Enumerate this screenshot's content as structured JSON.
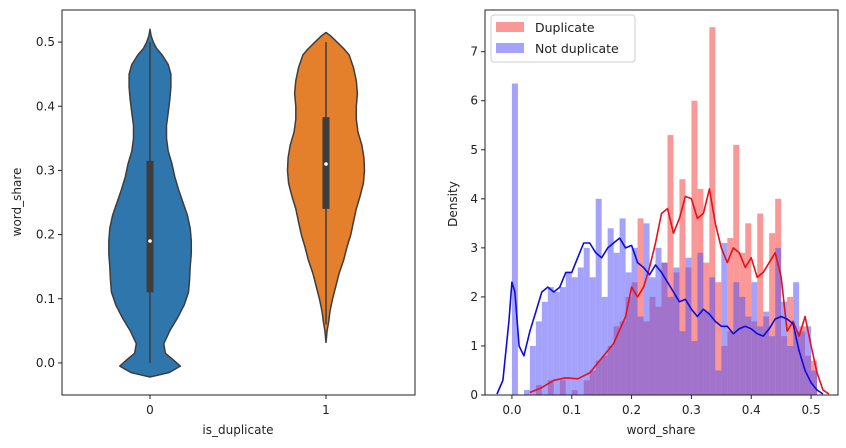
{
  "chart_data": [
    {
      "type": "violin",
      "xlabel": "is_duplicate",
      "ylabel": "word_share",
      "categories": [
        "0",
        "1"
      ],
      "ylim": [
        -0.05,
        0.55
      ],
      "yticks": [
        "0.0",
        "0.1",
        "0.2",
        "0.3",
        "0.4",
        "0.5"
      ],
      "grid": false,
      "colors": [
        "#2f76ad",
        "#e47f2c"
      ],
      "violins": [
        {
          "category": "0",
          "color": "#2f76ad",
          "range": [
            -0.022,
            0.52
          ],
          "median": 0.19,
          "q1": 0.11,
          "q3": 0.315,
          "whisker": [
            0.0,
            0.5
          ],
          "profile": [
            [
              -0.022,
              0.0
            ],
            [
              -0.015,
              0.35
            ],
            [
              -0.005,
              0.55
            ],
            [
              0.005,
              0.42
            ],
            [
              0.015,
              0.28
            ],
            [
              0.03,
              0.25
            ],
            [
              0.05,
              0.36
            ],
            [
              0.07,
              0.5
            ],
            [
              0.09,
              0.62
            ],
            [
              0.11,
              0.7
            ],
            [
              0.13,
              0.72
            ],
            [
              0.15,
              0.73
            ],
            [
              0.17,
              0.75
            ],
            [
              0.19,
              0.75
            ],
            [
              0.21,
              0.73
            ],
            [
              0.23,
              0.68
            ],
            [
              0.25,
              0.6
            ],
            [
              0.27,
              0.52
            ],
            [
              0.29,
              0.45
            ],
            [
              0.31,
              0.4
            ],
            [
              0.33,
              0.33
            ],
            [
              0.35,
              0.3
            ],
            [
              0.37,
              0.3
            ],
            [
              0.39,
              0.33
            ],
            [
              0.41,
              0.36
            ],
            [
              0.43,
              0.38
            ],
            [
              0.45,
              0.38
            ],
            [
              0.465,
              0.33
            ],
            [
              0.48,
              0.22
            ],
            [
              0.49,
              0.12
            ],
            [
              0.5,
              0.06
            ],
            [
              0.51,
              0.02
            ],
            [
              0.52,
              0.0
            ]
          ]
        },
        {
          "category": "1",
          "color": "#e47f2c",
          "range": [
            0.032,
            0.515
          ],
          "median": 0.31,
          "q1": 0.24,
          "q3": 0.383,
          "whisker": [
            0.06,
            0.5
          ],
          "profile": [
            [
              0.032,
              0.0
            ],
            [
              0.05,
              0.02
            ],
            [
              0.065,
              0.05
            ],
            [
              0.08,
              0.07
            ],
            [
              0.1,
              0.12
            ],
            [
              0.12,
              0.18
            ],
            [
              0.14,
              0.24
            ],
            [
              0.16,
              0.32
            ],
            [
              0.18,
              0.38
            ],
            [
              0.2,
              0.45
            ],
            [
              0.22,
              0.5
            ],
            [
              0.24,
              0.55
            ],
            [
              0.26,
              0.62
            ],
            [
              0.28,
              0.68
            ],
            [
              0.3,
              0.7
            ],
            [
              0.32,
              0.69
            ],
            [
              0.34,
              0.65
            ],
            [
              0.36,
              0.58
            ],
            [
              0.38,
              0.55
            ],
            [
              0.4,
              0.55
            ],
            [
              0.42,
              0.57
            ],
            [
              0.44,
              0.55
            ],
            [
              0.46,
              0.5
            ],
            [
              0.48,
              0.42
            ],
            [
              0.49,
              0.32
            ],
            [
              0.5,
              0.2
            ],
            [
              0.51,
              0.08
            ],
            [
              0.515,
              0.0
            ]
          ]
        }
      ]
    },
    {
      "type": "histogram",
      "xlabel": "word_share",
      "ylabel": "Density",
      "xlim": [
        -0.045,
        0.545
      ],
      "ylim": [
        0,
        7.85
      ],
      "xticks": [
        "0.0",
        "0.1",
        "0.2",
        "0.3",
        "0.4",
        "0.5"
      ],
      "yticks": [
        "0",
        "1",
        "2",
        "3",
        "4",
        "5",
        "6",
        "7"
      ],
      "legend": "top-left",
      "grid": false,
      "bin_width": 0.01,
      "series": [
        {
          "name": "Duplicate",
          "color": "#f4433f",
          "bins": [
            [
              0.04,
              0.2
            ],
            [
              0.06,
              0.3
            ],
            [
              0.08,
              0.3
            ],
            [
              0.1,
              0.1
            ],
            [
              0.12,
              0.3
            ],
            [
              0.13,
              0.5
            ],
            [
              0.14,
              0.7
            ],
            [
              0.15,
              0.8
            ],
            [
              0.16,
              1.0
            ],
            [
              0.17,
              1.4
            ],
            [
              0.18,
              1.5
            ],
            [
              0.19,
              2.0
            ],
            [
              0.2,
              2.3
            ],
            [
              0.21,
              3.6
            ],
            [
              0.22,
              1.5
            ],
            [
              0.23,
              2.0
            ],
            [
              0.24,
              1.8
            ],
            [
              0.25,
              2.7
            ],
            [
              0.26,
              5.3
            ],
            [
              0.27,
              2.5
            ],
            [
              0.28,
              4.4
            ],
            [
              0.29,
              2.6
            ],
            [
              0.3,
              6.0
            ],
            [
              0.31,
              4.2
            ],
            [
              0.32,
              2.7
            ],
            [
              0.33,
              7.5
            ],
            [
              0.34,
              2.3
            ],
            [
              0.35,
              1.0
            ],
            [
              0.36,
              3.2
            ],
            [
              0.37,
              5.1
            ],
            [
              0.38,
              2.9
            ],
            [
              0.39,
              3.5
            ],
            [
              0.4,
              1.5
            ],
            [
              0.41,
              3.7
            ],
            [
              0.42,
              1.6
            ],
            [
              0.43,
              3.3
            ],
            [
              0.44,
              4.0
            ],
            [
              0.45,
              1.2
            ],
            [
              0.46,
              2.0
            ],
            [
              0.47,
              1.3
            ],
            [
              0.48,
              1.4
            ],
            [
              0.49,
              0.8
            ],
            [
              0.5,
              0.7
            ]
          ]
        },
        {
          "name": "Not duplicate",
          "color": "#5a55f7",
          "bins": [
            [
              0.0,
              6.35
            ],
            [
              0.02,
              0.1
            ],
            [
              0.03,
              1.0
            ],
            [
              0.04,
              1.5
            ],
            [
              0.05,
              1.9
            ],
            [
              0.06,
              2.2
            ],
            [
              0.07,
              2.1
            ],
            [
              0.08,
              2.2
            ],
            [
              0.09,
              2.5
            ],
            [
              0.1,
              2.4
            ],
            [
              0.11,
              2.6
            ],
            [
              0.12,
              3.0
            ],
            [
              0.13,
              2.4
            ],
            [
              0.14,
              4.0
            ],
            [
              0.15,
              2.0
            ],
            [
              0.16,
              3.4
            ],
            [
              0.17,
              2.9
            ],
            [
              0.18,
              3.6
            ],
            [
              0.19,
              2.5
            ],
            [
              0.2,
              3.0
            ],
            [
              0.21,
              1.6
            ],
            [
              0.22,
              3.5
            ],
            [
              0.23,
              2.4
            ],
            [
              0.24,
              3.0
            ],
            [
              0.25,
              2.7
            ],
            [
              0.26,
              2.0
            ],
            [
              0.27,
              2.6
            ],
            [
              0.28,
              1.3
            ],
            [
              0.29,
              2.8
            ],
            [
              0.3,
              1.1
            ],
            [
              0.31,
              2.9
            ],
            [
              0.32,
              1.7
            ],
            [
              0.33,
              2.4
            ],
            [
              0.34,
              0.5
            ],
            [
              0.35,
              3.1
            ],
            [
              0.36,
              1.3
            ],
            [
              0.37,
              2.3
            ],
            [
              0.38,
              2.0
            ],
            [
              0.39,
              1.6
            ],
            [
              0.4,
              2.3
            ],
            [
              0.41,
              1.4
            ],
            [
              0.42,
              1.7
            ],
            [
              0.43,
              1.2
            ],
            [
              0.44,
              3.0
            ],
            [
              0.45,
              1.9
            ],
            [
              0.46,
              1.0
            ],
            [
              0.47,
              2.3
            ],
            [
              0.48,
              1.3
            ],
            [
              0.49,
              1.4
            ],
            [
              0.5,
              0.5
            ]
          ]
        }
      ],
      "kde": [
        {
          "name": "Duplicate",
          "color": "#e8101a",
          "points": [
            [
              0.03,
              0.05
            ],
            [
              0.05,
              0.15
            ],
            [
              0.07,
              0.3
            ],
            [
              0.09,
              0.35
            ],
            [
              0.11,
              0.33
            ],
            [
              0.13,
              0.45
            ],
            [
              0.15,
              0.75
            ],
            [
              0.17,
              1.05
            ],
            [
              0.19,
              1.6
            ],
            [
              0.2,
              2.2
            ],
            [
              0.21,
              2.0
            ],
            [
              0.22,
              2.2
            ],
            [
              0.23,
              2.6
            ],
            [
              0.24,
              3.1
            ],
            [
              0.25,
              3.7
            ],
            [
              0.26,
              3.8
            ],
            [
              0.27,
              3.3
            ],
            [
              0.28,
              3.6
            ],
            [
              0.29,
              4.05
            ],
            [
              0.3,
              4.0
            ],
            [
              0.31,
              3.6
            ],
            [
              0.32,
              3.7
            ],
            [
              0.33,
              4.2
            ],
            [
              0.34,
              3.5
            ],
            [
              0.35,
              3.0
            ],
            [
              0.36,
              2.7
            ],
            [
              0.37,
              3.0
            ],
            [
              0.38,
              2.9
            ],
            [
              0.39,
              2.6
            ],
            [
              0.4,
              2.8
            ],
            [
              0.41,
              2.4
            ],
            [
              0.42,
              2.5
            ],
            [
              0.43,
              2.7
            ],
            [
              0.44,
              2.9
            ],
            [
              0.45,
              2.4
            ],
            [
              0.46,
              1.3
            ],
            [
              0.47,
              1.5
            ],
            [
              0.48,
              1.2
            ],
            [
              0.49,
              1.6
            ],
            [
              0.5,
              1.0
            ],
            [
              0.51,
              0.45
            ],
            [
              0.52,
              0.1
            ],
            [
              0.53,
              0.02
            ]
          ]
        },
        {
          "name": "Not duplicate",
          "color": "#0c0ce0",
          "points": [
            [
              -0.025,
              0.02
            ],
            [
              -0.015,
              0.3
            ],
            [
              -0.005,
              1.5
            ],
            [
              0.0,
              2.3
            ],
            [
              0.005,
              2.1
            ],
            [
              0.012,
              1.0
            ],
            [
              0.02,
              0.8
            ],
            [
              0.03,
              1.3
            ],
            [
              0.04,
              1.7
            ],
            [
              0.05,
              2.1
            ],
            [
              0.06,
              2.2
            ],
            [
              0.07,
              2.1
            ],
            [
              0.08,
              2.2
            ],
            [
              0.09,
              2.5
            ],
            [
              0.1,
              2.5
            ],
            [
              0.11,
              2.8
            ],
            [
              0.12,
              3.1
            ],
            [
              0.13,
              3.1
            ],
            [
              0.14,
              2.9
            ],
            [
              0.15,
              2.8
            ],
            [
              0.16,
              3.0
            ],
            [
              0.17,
              3.1
            ],
            [
              0.18,
              3.2
            ],
            [
              0.19,
              3.0
            ],
            [
              0.2,
              3.05
            ],
            [
              0.21,
              2.7
            ],
            [
              0.22,
              2.6
            ],
            [
              0.23,
              2.45
            ],
            [
              0.24,
              2.65
            ],
            [
              0.25,
              2.5
            ],
            [
              0.26,
              2.3
            ],
            [
              0.27,
              2.1
            ],
            [
              0.28,
              1.9
            ],
            [
              0.29,
              1.95
            ],
            [
              0.3,
              1.75
            ],
            [
              0.31,
              1.6
            ],
            [
              0.32,
              1.75
            ],
            [
              0.33,
              1.65
            ],
            [
              0.34,
              1.5
            ],
            [
              0.35,
              1.4
            ],
            [
              0.36,
              1.4
            ],
            [
              0.37,
              1.25
            ],
            [
              0.38,
              1.35
            ],
            [
              0.39,
              1.4
            ],
            [
              0.4,
              1.35
            ],
            [
              0.41,
              1.25
            ],
            [
              0.42,
              1.2
            ],
            [
              0.43,
              1.35
            ],
            [
              0.44,
              1.55
            ],
            [
              0.45,
              1.6
            ],
            [
              0.46,
              1.55
            ],
            [
              0.47,
              1.45
            ],
            [
              0.48,
              0.9
            ],
            [
              0.49,
              0.5
            ],
            [
              0.5,
              0.25
            ],
            [
              0.51,
              0.1
            ],
            [
              0.52,
              0.02
            ]
          ]
        }
      ]
    }
  ]
}
